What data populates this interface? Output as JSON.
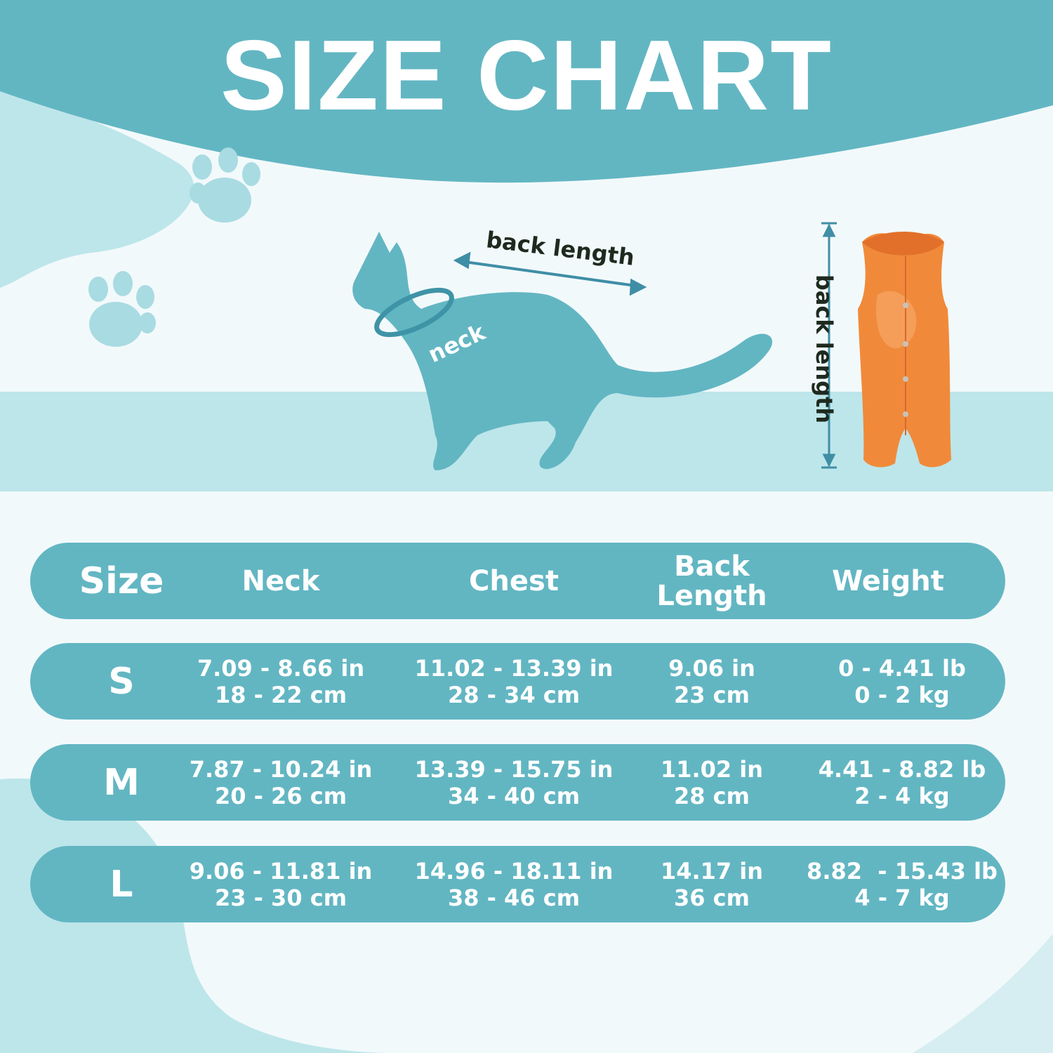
{
  "title": "SIZE CHART",
  "colors": {
    "accent": "#62b6c2",
    "light_band": "#bde6ea",
    "background": "#f2f9fb",
    "garment": "#f08a3a"
  },
  "diagram": {
    "cat_back_label": "back length",
    "cat_neck_label": "neck",
    "garment_label": "back length"
  },
  "table": {
    "headers": [
      "Size",
      "Neck",
      "Chest",
      "Back Length",
      "Weight"
    ],
    "rows": [
      {
        "size": "S",
        "neck": [
          "7.09 - 8.66 in",
          "18 - 22 cm"
        ],
        "chest": [
          "11.02 - 13.39 in",
          "28 - 34 cm"
        ],
        "back": [
          "9.06 in",
          "23 cm"
        ],
        "weight": [
          "0 - 4.41 lb",
          "0 - 2 kg"
        ]
      },
      {
        "size": "M",
        "neck": [
          "7.87 - 10.24 in",
          "20 - 26 cm"
        ],
        "chest": [
          "13.39 - 15.75 in",
          "34 - 40 cm"
        ],
        "back": [
          "11.02 in",
          "28 cm"
        ],
        "weight": [
          "4.41 - 8.82 lb",
          "2 - 4 kg"
        ]
      },
      {
        "size": "L",
        "neck": [
          "9.06 - 11.81 in",
          "23 - 30 cm"
        ],
        "chest": [
          "14.96 - 18.11 in",
          "38 - 46 cm"
        ],
        "back": [
          "14.17 in",
          "36 cm"
        ],
        "weight": [
          "8.82  - 15.43 lb",
          "4 - 7 kg"
        ]
      }
    ]
  }
}
